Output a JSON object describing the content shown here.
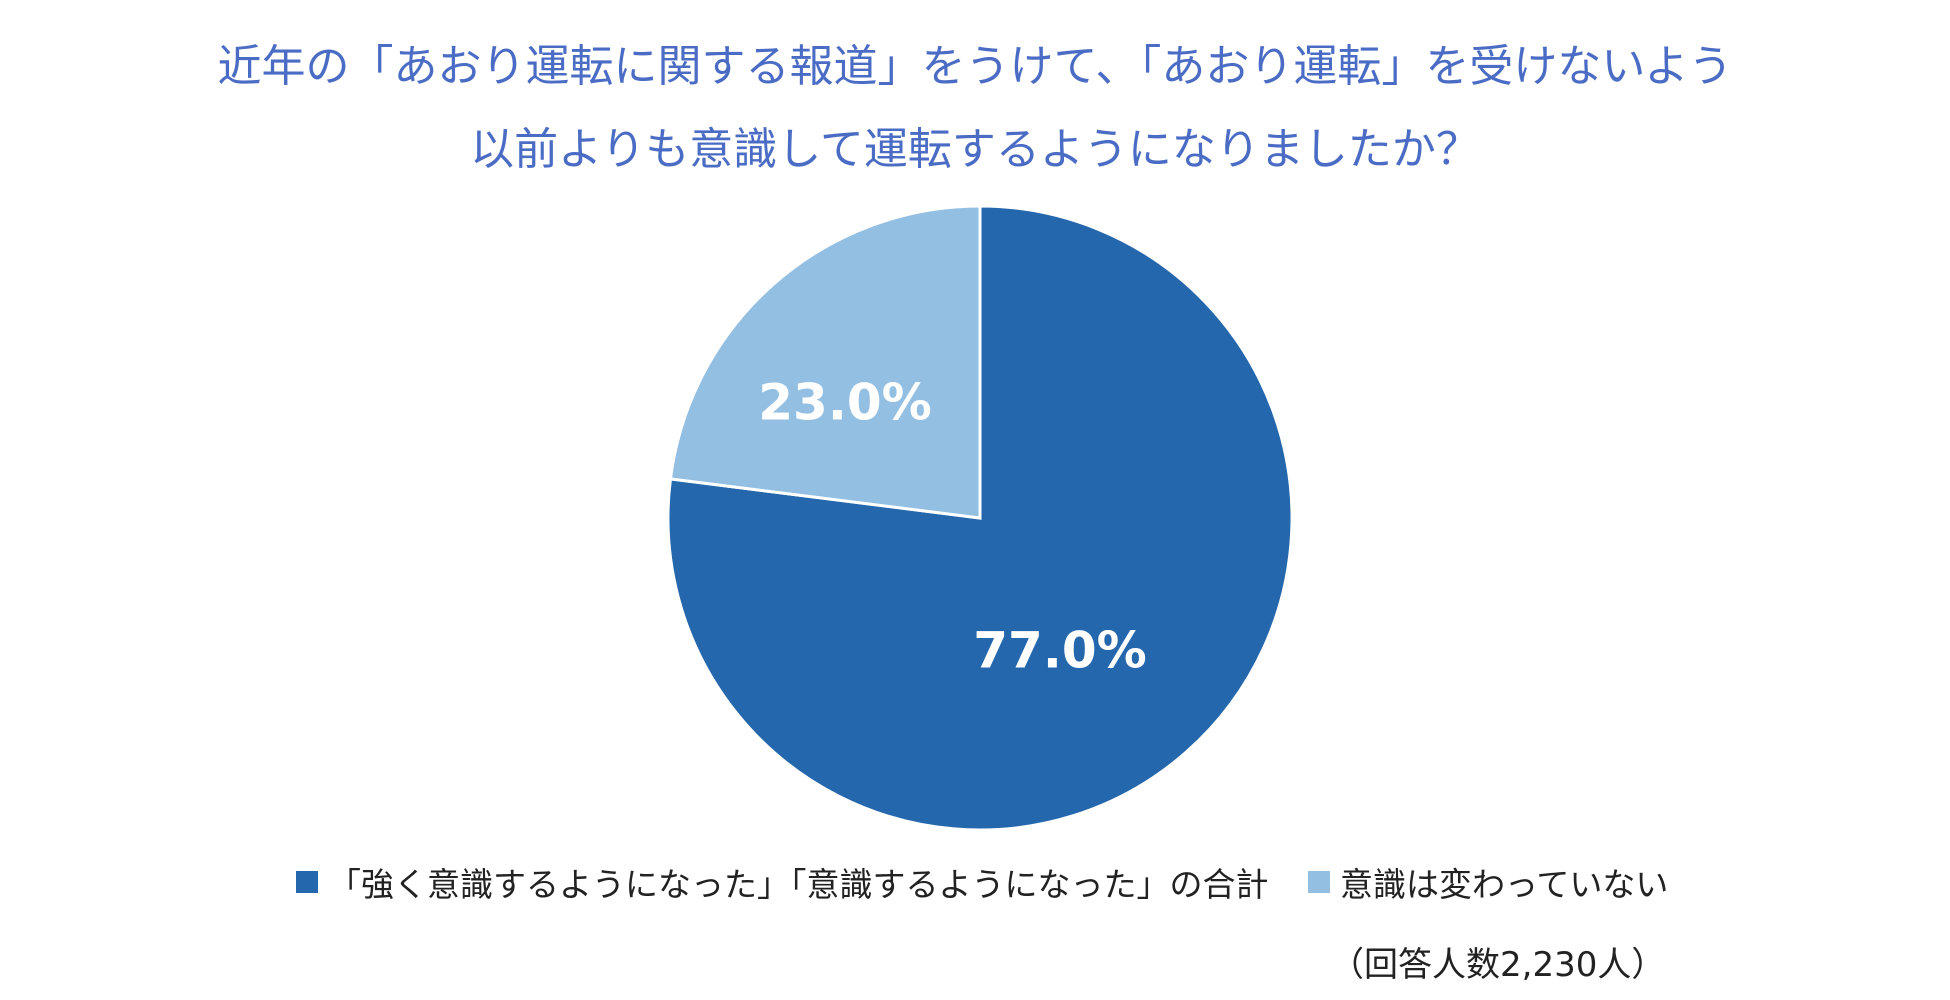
{
  "chart_data": {
    "type": "pie",
    "title_lines": [
      "近年の「あおり運転に関する報道」をうけて、「あおり運転」を受けないよう",
      "以前よりも意識して運転するようになりましたか？"
    ],
    "categories": [
      "「強く意識するようになった」「意識するようになった」の合計",
      "意識は変わっていない"
    ],
    "values": [
      77.0,
      23.0
    ],
    "value_labels": [
      "77.0%",
      "23.0%"
    ],
    "colors": [
      "#2467ad",
      "#93bfe3"
    ],
    "start_angle_deg": 0,
    "direction": "clockwise",
    "legend_position": "bottom",
    "note": "（回答人数2,230人）"
  }
}
